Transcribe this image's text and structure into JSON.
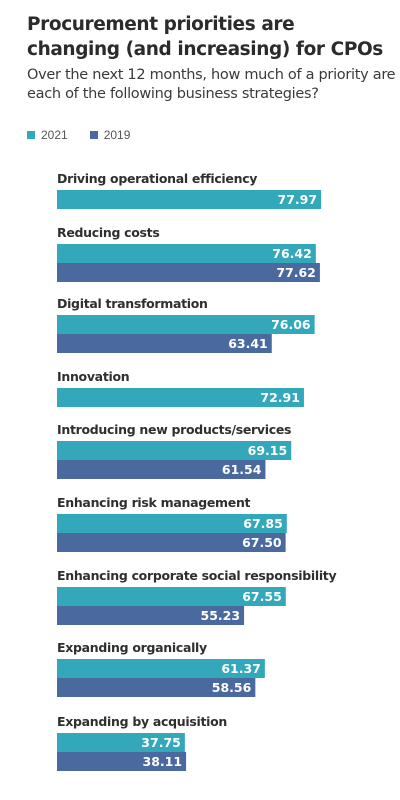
{
  "title": "Procurement priorities are changing (and increasing) for CPOs",
  "subtitle": "Over the next 12 months, how much of a priority are each of the following business strategies?",
  "colors": {
    "2021": "#33a8ba",
    "2019": "#4a6a9f"
  },
  "chart_data": {
    "type": "bar",
    "orientation": "horizontal",
    "title": "Procurement priorities are changing (and increasing) for CPOs",
    "subtitle": "Over the next 12 months, how much of a priority are each of the following business strategies?",
    "legend": [
      "2021",
      "2019"
    ],
    "legend_placement": "top-left",
    "grid": false,
    "categories": [
      "Driving operational efficiency",
      "Reducing costs",
      "Digital transformation",
      "Innovation",
      "Introducing new products/services",
      "Enhancing risk management",
      "Enhancing corporate social responsibility",
      "Expanding organically",
      "Expanding by acquisition"
    ],
    "series": [
      {
        "name": "2021",
        "values": [
          77.97,
          76.42,
          76.06,
          72.91,
          69.15,
          67.85,
          67.55,
          61.37,
          37.75
        ]
      },
      {
        "name": "2019",
        "values": [
          null,
          77.62,
          63.41,
          null,
          61.54,
          67.5,
          55.23,
          58.56,
          38.11
        ]
      }
    ],
    "xlim": [
      0,
      80
    ]
  }
}
